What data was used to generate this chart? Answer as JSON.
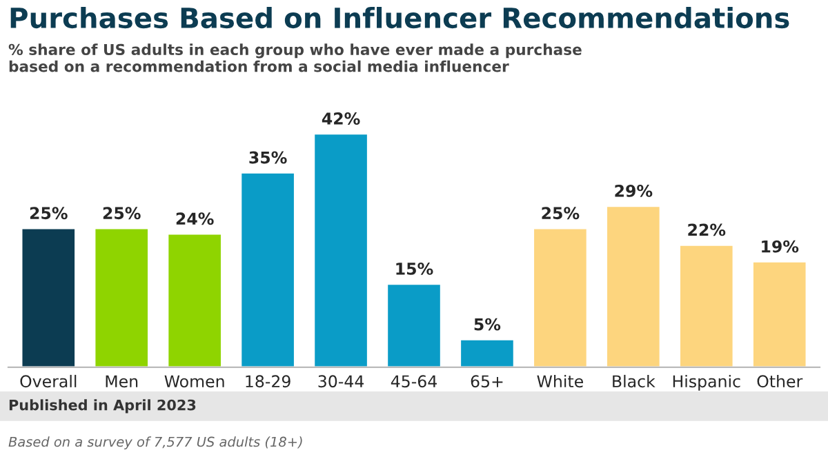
{
  "chart_data": {
    "type": "bar",
    "title": "Purchases Based on Influencer Recommendations",
    "subtitle": "% share of US adults in each group who have ever made a purchase\nbased on a recommendation from a social media influencer",
    "categories": [
      "Overall",
      "Men",
      "Women",
      "18-29",
      "30-44",
      "45-64",
      "65+",
      "White",
      "Black",
      "Hispanic",
      "Other"
    ],
    "values": [
      25,
      25,
      24,
      35,
      42,
      15,
      5,
      25,
      29,
      22,
      19
    ],
    "colors": [
      "#0c3c52",
      "#8fd400",
      "#8fd400",
      "#0a9cc7",
      "#0a9cc7",
      "#0a9cc7",
      "#0a9cc7",
      "#fdd57e",
      "#fdd57e",
      "#fdd57e",
      "#fdd57e"
    ],
    "value_labels": [
      "25%",
      "25%",
      "24%",
      "35%",
      "42%",
      "15%",
      "5%",
      "25%",
      "29%",
      "22%",
      "19%"
    ],
    "annotations": [
      "Published in April 2023",
      "Based on a survey of 7,577 US adults (18+)"
    ]
  }
}
